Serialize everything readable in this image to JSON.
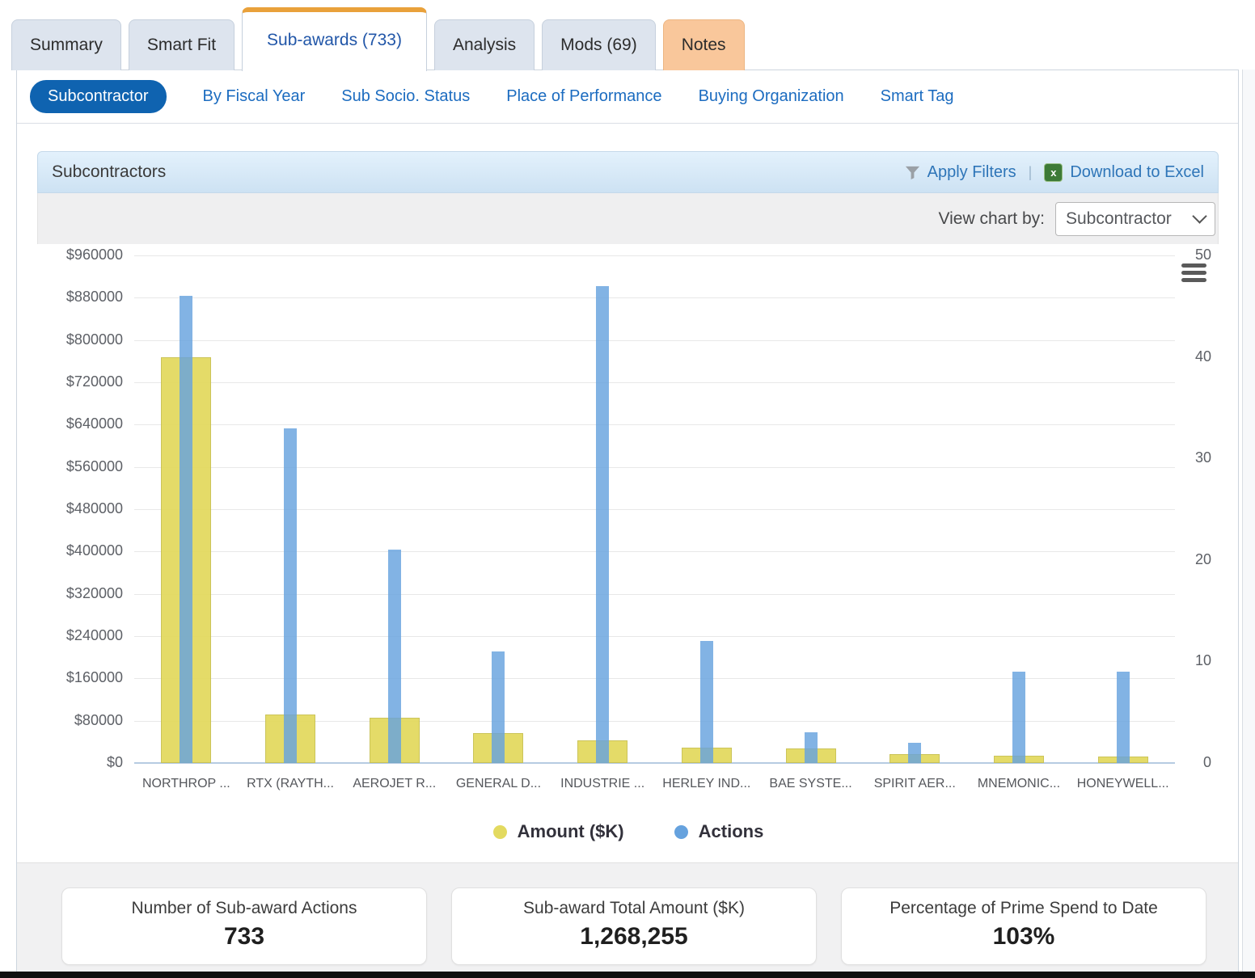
{
  "tabs": [
    {
      "label": "Summary",
      "state": "default"
    },
    {
      "label": "Smart Fit",
      "state": "default"
    },
    {
      "label": "Sub-awards (733)",
      "state": "active"
    },
    {
      "label": "Analysis",
      "state": "default"
    },
    {
      "label": "Mods (69)",
      "state": "default"
    },
    {
      "label": "Notes",
      "state": "highlight"
    }
  ],
  "subnav": {
    "active": "Subcontractor",
    "links": [
      "By Fiscal Year",
      "Sub Socio. Status",
      "Place of Performance",
      "Buying Organization",
      "Smart Tag"
    ]
  },
  "panel": {
    "title": "Subcontractors",
    "apply_filters_label": "Apply Filters",
    "separator": "|",
    "download_label": "Download to Excel",
    "excel_glyph": "x",
    "view_chart_by_label": "View chart by:",
    "view_chart_by_value": "Subcontractor"
  },
  "chart_data": {
    "type": "bar",
    "title": "Subcontractors",
    "categories": [
      "NORTHROP ...",
      "RTX (RAYTH...",
      "AEROJET R...",
      "GENERAL D...",
      "INDUSTRIE ...",
      "HERLEY IND...",
      "BAE SYSTE...",
      "SPIRIT AER...",
      "MNEMONIC...",
      "HONEYWELL..."
    ],
    "series": [
      {
        "name": "Amount ($K)",
        "axis": "left",
        "color": "#e3da60",
        "values": [
          768000,
          91000,
          85000,
          57000,
          43000,
          29000,
          28000,
          17000,
          14000,
          12000
        ]
      },
      {
        "name": "Actions",
        "axis": "right",
        "color": "#66a2de",
        "values": [
          46,
          33,
          21,
          11,
          47,
          12,
          3,
          2,
          9,
          9
        ]
      }
    ],
    "left_axis": {
      "min": 0,
      "max": 960000,
      "tick_interval": 80000,
      "tick_labels": [
        "$0",
        "$80000",
        "$160000",
        "$240000",
        "$320000",
        "$400000",
        "$480000",
        "$560000",
        "$640000",
        "$720000",
        "$800000",
        "$880000",
        "$960000"
      ]
    },
    "right_axis": {
      "min": 0,
      "max": 50,
      "tick_interval": 10,
      "tick_labels": [
        "0",
        "10",
        "20",
        "30",
        "40",
        "50"
      ]
    },
    "legend_position": "bottom",
    "grid": true
  },
  "cards": [
    {
      "title": "Number of Sub-award Actions",
      "value": "733"
    },
    {
      "title": "Sub-award Total Amount ($K)",
      "value": "1,268,255"
    },
    {
      "title": "Percentage of Prime Spend to Date",
      "value": "103%"
    }
  ],
  "colors": {
    "accent_orange": "#e9a13b",
    "pill_blue": "#0f63b0",
    "link_blue": "#1c6cc0",
    "amount_yellow": "#e3da60",
    "actions_blue": "#66a2de"
  }
}
